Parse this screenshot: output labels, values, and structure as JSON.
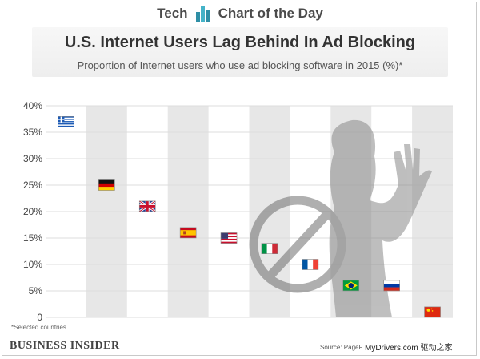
{
  "header": {
    "left": "Tech",
    "right": "Chart of the Day"
  },
  "colors": {
    "band": "#e7e7e7",
    "grid": "#dcdcdc",
    "axis_text": "#444444",
    "silhouette": "#8a8a8a"
  },
  "chart_data": {
    "type": "scatter",
    "title": "U.S. Internet Users Lag Behind In Ad Blocking",
    "subtitle": "Proportion of Internet users who use ad blocking software in 2015 (%)*",
    "ylim": [
      0,
      40
    ],
    "yticks": [
      "0",
      "5%",
      "10%",
      "15%",
      "20%",
      "25%",
      "30%",
      "35%",
      "40%"
    ],
    "ytick_values": [
      0,
      5,
      10,
      15,
      20,
      25,
      30,
      35,
      40
    ],
    "grid": true,
    "marker": "country-flag",
    "categories": [
      "Greece",
      "Germany",
      "United Kingdom",
      "Spain",
      "United States",
      "Italy",
      "France",
      "Brazil",
      "Russia",
      "China"
    ],
    "flags": [
      "greece-flag-icon",
      "germany-flag-icon",
      "uk-flag-icon",
      "spain-flag-icon",
      "usa-flag-icon",
      "italy-flag-icon",
      "france-flag-icon",
      "brazil-flag-icon",
      "russia-flag-icon",
      "china-flag-icon"
    ],
    "values": [
      37,
      25,
      21,
      16,
      15,
      13,
      10,
      6,
      6,
      1
    ]
  },
  "footnote": "*Selected countries",
  "brand": "BUSINESS INSIDER",
  "source": "Source: PageF",
  "watermark": "MyDrivers.com 驱动之家"
}
